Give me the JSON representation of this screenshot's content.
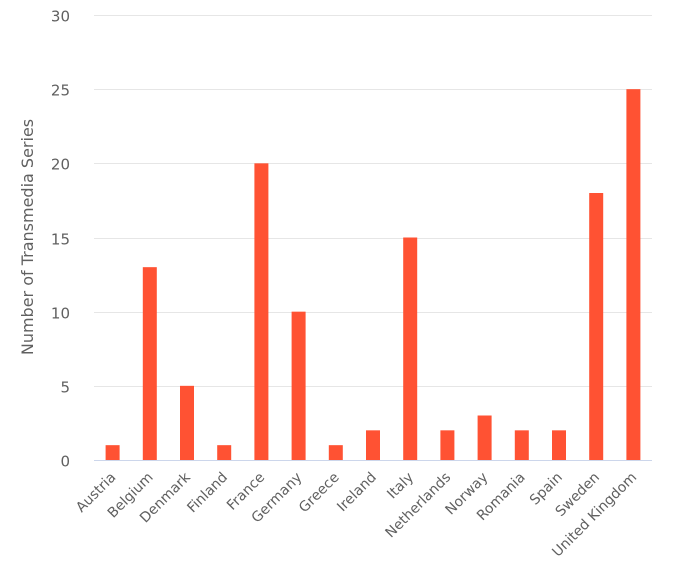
{
  "chart_data": {
    "type": "bar",
    "title": "",
    "xlabel": "",
    "ylabel": "Number of Transmedia Series",
    "ylim": [
      0,
      30
    ],
    "yticks": [
      0,
      5,
      10,
      15,
      20,
      25,
      30
    ],
    "grid": true,
    "legend": "none",
    "color": "#ff5233",
    "categories": [
      "Austria",
      "Belgium",
      "Denmark",
      "Finland",
      "France",
      "Germany",
      "Greece",
      "Ireland",
      "Italy",
      "Netherlands",
      "Norway",
      "Romania",
      "Spain",
      "Sweden",
      "United Kingdom"
    ],
    "values": [
      1,
      13,
      5,
      1,
      20,
      10,
      1,
      2,
      15,
      2,
      3,
      2,
      2,
      18,
      25
    ]
  }
}
